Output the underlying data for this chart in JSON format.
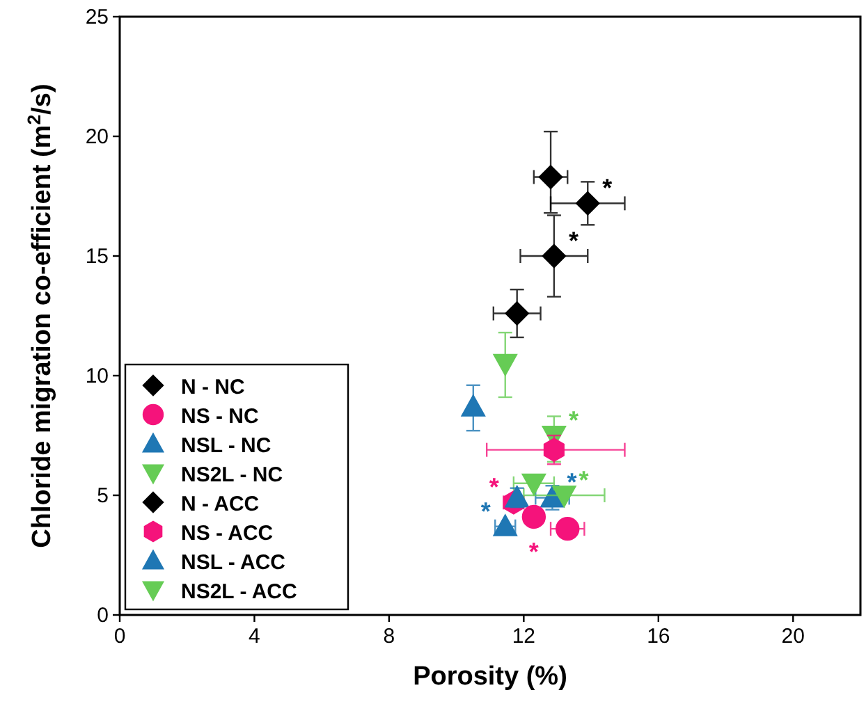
{
  "chart_data": {
    "type": "scatter",
    "xlabel": "Porosity (%)",
    "ylabel": "Chloride migration co-efficient (m$^{2}$/s)",
    "xlim": [
      0,
      22
    ],
    "ylim": [
      0,
      25
    ],
    "xticks": [
      0,
      4,
      8,
      12,
      16,
      20
    ],
    "yticks": [
      0,
      5,
      10,
      15,
      20,
      25
    ],
    "legend": "bottom left",
    "grid": false,
    "series": [
      {
        "name": "N - NC",
        "color": "#000000",
        "marker": "diamond",
        "x": [
          11.8,
          12.9
        ],
        "values": [
          12.6,
          15.0
        ],
        "errors": [
          1.0,
          1.7
        ],
        "xerrors": [
          0.7,
          1.0
        ]
      },
      {
        "name": "NS - NC",
        "color": "#f5137b",
        "marker": "circle",
        "x": [
          12.3,
          13.3
        ],
        "values": [
          4.1,
          3.6
        ],
        "errors": [
          null,
          null
        ],
        "xerrors": [
          null,
          0.5
        ]
      },
      {
        "name": "NSL - NC",
        "color": "#1f77b4",
        "marker": "triangle",
        "x": [
          11.45,
          11.8
        ],
        "values": [
          3.7,
          4.9
        ],
        "errors": [
          null,
          0.4
        ],
        "xerrors": [
          0.3,
          null
        ]
      },
      {
        "name": "NS2L - NC",
        "color": "#66cc55",
        "x": [
          12.3,
          13.2
        ],
        "values": [
          5.5,
          5.0
        ],
        "errors": [
          null,
          null
        ],
        "xerrors": [
          0.6,
          1.2
        ]
      },
      {
        "name": "N - ACC",
        "color": "#000000",
        "marker": "diamond",
        "x": [
          12.8,
          13.9
        ],
        "values": [
          18.3,
          17.2
        ],
        "errors": [
          [
            16.8,
            20.2
          ],
          0.9
        ],
        "xerrors": [
          0.5,
          1.1
        ]
      },
      {
        "name": "NS - ACC",
        "color": "#f5137b",
        "x": [
          12.9,
          11.7
        ],
        "values": [
          6.9,
          4.7
        ],
        "errors": [
          0.6,
          null
        ],
        "xerrors": [
          [
            10.9,
            15.0
          ],
          0.3
        ]
      },
      {
        "name": "NSL - ACC",
        "color": "#1f77b4",
        "marker": "triangle",
        "x": [
          10.5,
          12.85
        ],
        "values": [
          8.7,
          4.9
        ],
        "errors": [
          [
            7.7,
            9.6
          ],
          0.5
        ],
        "xerrors": [
          null,
          0.5
        ]
      },
      {
        "name": "NS2L - ACC",
        "color": "#66cc55",
        "x": [
          11.45,
          12.9
        ],
        "values": [
          10.5,
          7.5
        ],
        "errors": [
          [
            9.1,
            11.8
          ],
          [
            6.4,
            8.3
          ]
        ],
        "xerrors": [
          null,
          null
        ]
      }
    ],
    "annotations": [
      {
        "text": "*",
        "x": 13.9,
        "y": 17.2
      },
      {
        "text": "*",
        "x": 12.9,
        "y": 15.0
      },
      {
        "text": "*",
        "x": 12.9,
        "y": 7.5
      },
      {
        "text": "*",
        "x": 13.2,
        "y": 5.0
      },
      {
        "text": "*",
        "x": 12.85,
        "y": 4.9
      },
      {
        "text": "*",
        "x": 11.7,
        "y": 4.7
      },
      {
        "text": "*",
        "x": 12.3,
        "y": 4.1
      },
      {
        "text": "*",
        "x": 11.45,
        "y": 3.7
      }
    ]
  }
}
